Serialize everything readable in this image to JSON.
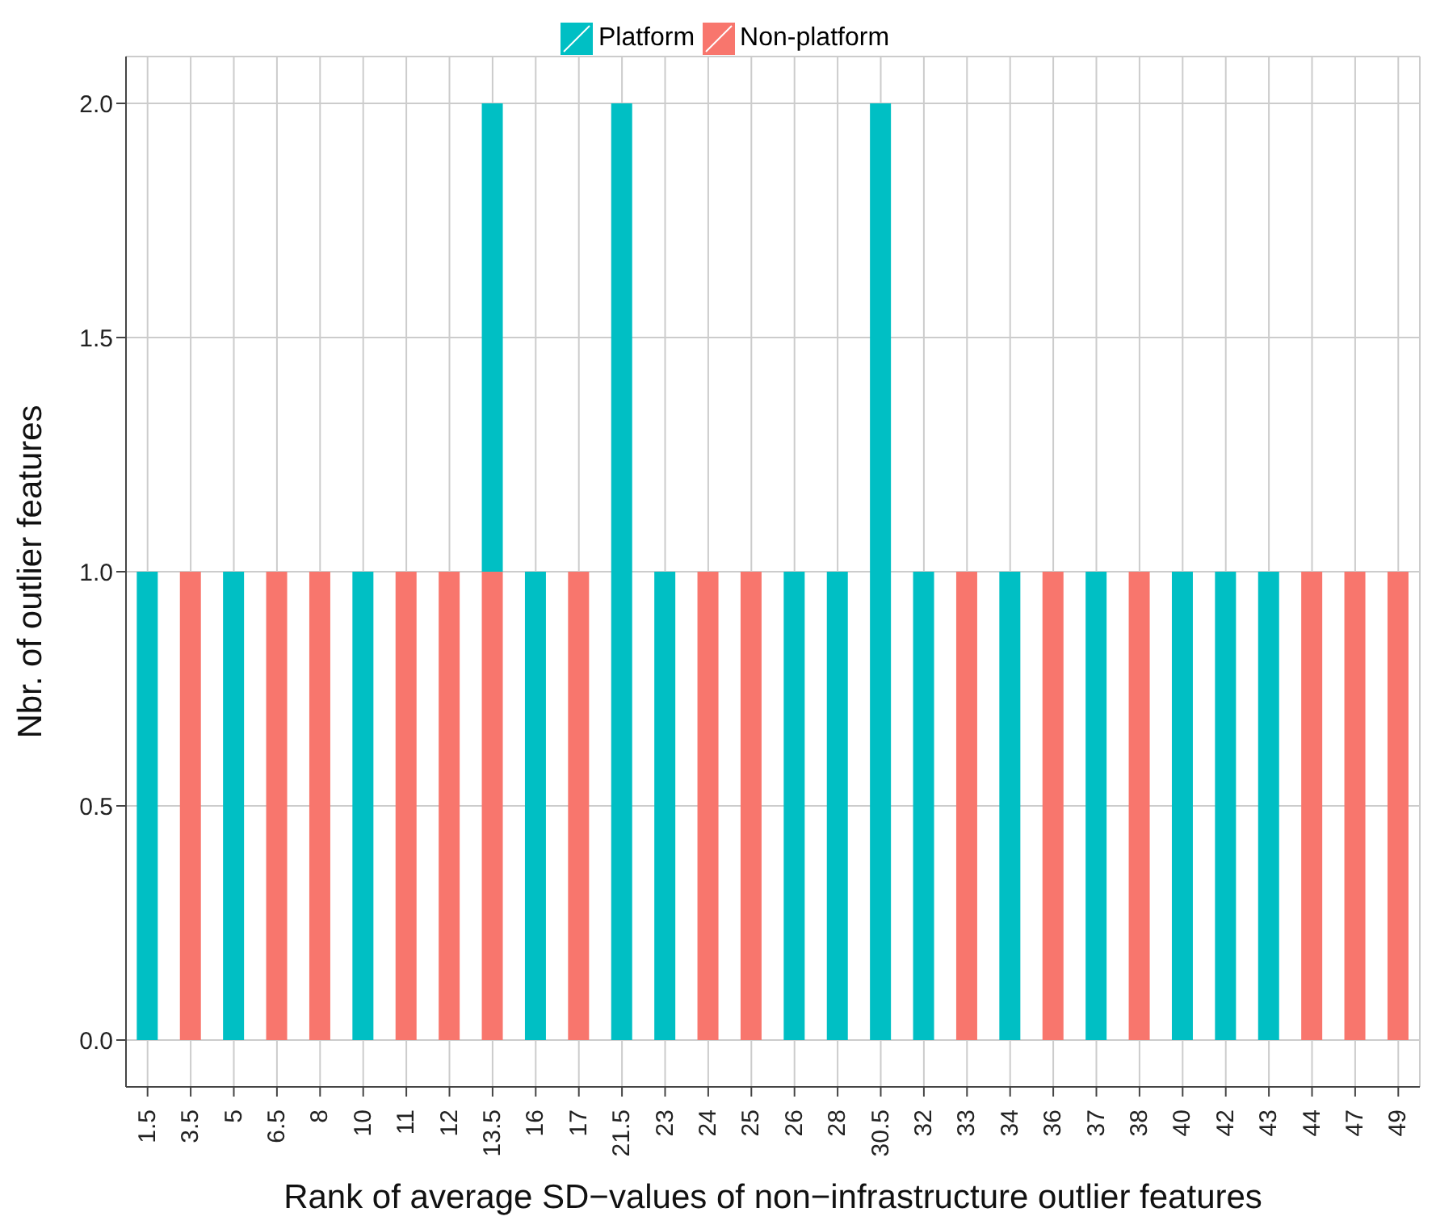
{
  "chart_data": {
    "type": "bar",
    "stacked": true,
    "xlabel": "Rank of average SD−values of non−infrastructure outlier features",
    "ylabel": "Nbr. of outlier features",
    "categories": [
      "1.5",
      "3.5",
      "5",
      "6.5",
      "8",
      "10",
      "11",
      "12",
      "13.5",
      "16",
      "17",
      "21.5",
      "23",
      "24",
      "25",
      "26",
      "28",
      "30.5",
      "32",
      "33",
      "34",
      "36",
      "37",
      "38",
      "40",
      "42",
      "43",
      "44",
      "47",
      "49"
    ],
    "series": [
      {
        "name": "Non-platform",
        "color": "#f8766d",
        "values": [
          null,
          1,
          null,
          1,
          1,
          null,
          1,
          1,
          1,
          null,
          1,
          null,
          null,
          1,
          1,
          null,
          null,
          null,
          null,
          1,
          null,
          1,
          null,
          1,
          null,
          null,
          null,
          1,
          1,
          1
        ]
      },
      {
        "name": "Platform",
        "color": "#00bfc4",
        "values": [
          1,
          null,
          1,
          null,
          null,
          1,
          null,
          null,
          1,
          1,
          null,
          2,
          1,
          null,
          null,
          1,
          1,
          2,
          1,
          null,
          1,
          null,
          1,
          null,
          1,
          1,
          1,
          null,
          null,
          null
        ]
      }
    ],
    "ylim": [
      -0.1,
      2.1
    ],
    "yticks": [
      {
        "value": 0,
        "label": "0.0"
      },
      {
        "value": 0.5,
        "label": "0.5"
      },
      {
        "value": 1,
        "label": "1.0"
      },
      {
        "value": 1.5,
        "label": "1.5"
      },
      {
        "value": 2,
        "label": "2.0"
      }
    ],
    "grid": true,
    "legend": "top"
  }
}
